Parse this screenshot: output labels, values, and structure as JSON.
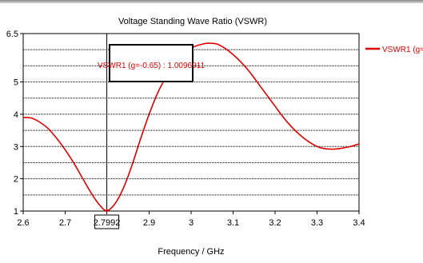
{
  "chart_data": {
    "type": "line",
    "title": "Voltage Standing Wave Ratio (VSWR)",
    "xlabel": "Frequency / GHz",
    "ylabel": "",
    "xlim": [
      2.6,
      3.4
    ],
    "ylim": [
      1,
      6.5
    ],
    "x_ticks": [
      "2.6",
      "2.7",
      "2.7992",
      "2.9",
      "3",
      "3.1",
      "3.2",
      "3.3",
      "3.4"
    ],
    "x_tick_values": [
      2.6,
      2.7,
      2.7992,
      2.9,
      3.0,
      3.1,
      3.2,
      3.3,
      3.4
    ],
    "y_ticks": [
      "1",
      "2",
      "3",
      "4",
      "5",
      "6.5"
    ],
    "y_tick_values": [
      1,
      2,
      3,
      4,
      5,
      6.5
    ],
    "grid": true,
    "legend_position": "right",
    "series": [
      {
        "name": "VSWR1 (g=-0.65)",
        "color": "#e00000",
        "x": [
          2.6,
          2.62,
          2.64,
          2.66,
          2.68,
          2.7,
          2.72,
          2.74,
          2.76,
          2.78,
          2.7992,
          2.82,
          2.84,
          2.86,
          2.88,
          2.9,
          2.92,
          2.94,
          2.96,
          2.98,
          3.0,
          3.02,
          3.04,
          3.06,
          3.08,
          3.1,
          3.12,
          3.14,
          3.16,
          3.18,
          3.2,
          3.22,
          3.24,
          3.26,
          3.28,
          3.3,
          3.32,
          3.34,
          3.36,
          3.38,
          3.4
        ],
        "y": [
          3.9,
          3.88,
          3.75,
          3.55,
          3.25,
          2.9,
          2.5,
          2.05,
          1.6,
          1.22,
          1.01,
          1.25,
          1.75,
          2.45,
          3.25,
          4.0,
          4.65,
          5.15,
          5.6,
          5.85,
          6.05,
          6.15,
          6.2,
          6.18,
          6.05,
          5.85,
          5.6,
          5.3,
          4.95,
          4.6,
          4.25,
          3.9,
          3.6,
          3.35,
          3.15,
          3.0,
          2.93,
          2.92,
          2.95,
          3.0,
          3.08
        ]
      }
    ],
    "marker": {
      "x": 2.7992,
      "label": "2.7992",
      "annotation": "VSWR1 (g=-0.65) : 1.0096911"
    }
  }
}
